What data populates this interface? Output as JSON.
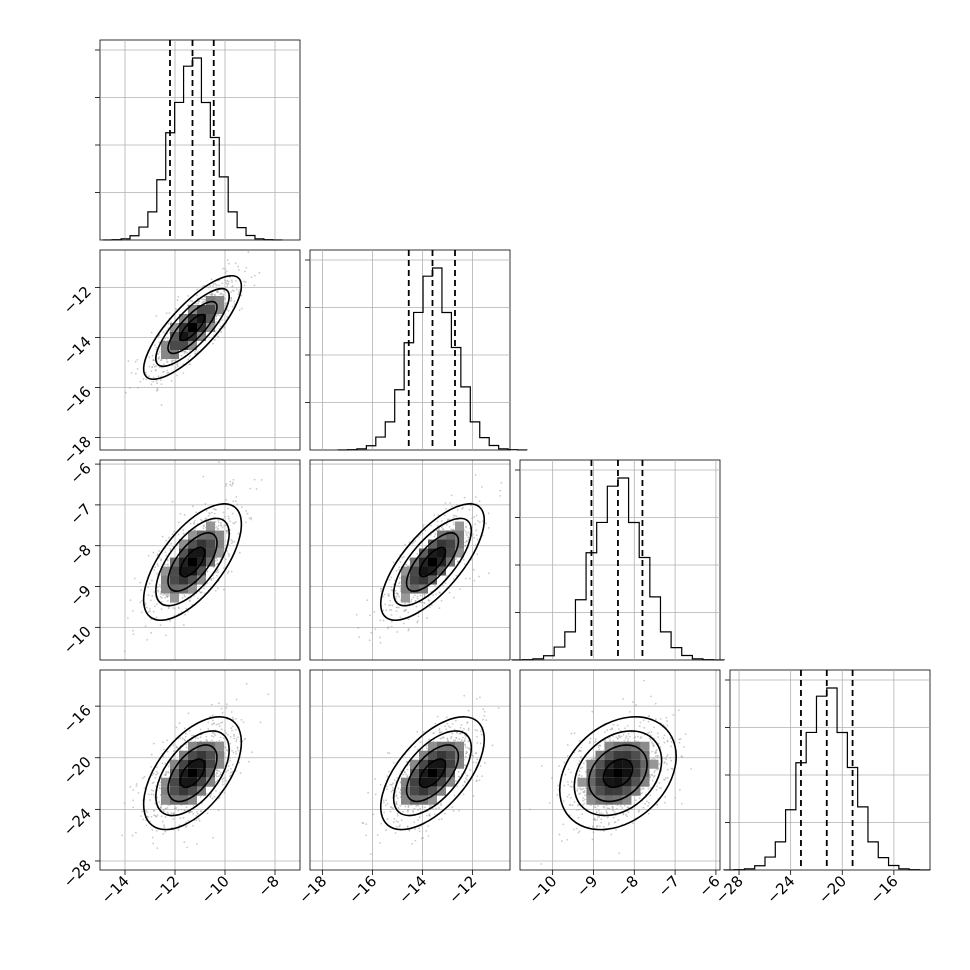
{
  "chart_data": {
    "type": "corner",
    "title": "",
    "grid": true,
    "parameters": [
      {
        "range": [
          -15,
          -7
        ],
        "ticks": [
          -14,
          -12,
          -10,
          -8
        ],
        "tick_labels": [
          "−14",
          "−12",
          "−10",
          "−8"
        ],
        "mean": -11.3,
        "sd": 0.85,
        "quantiles": [
          -12.2,
          -11.3,
          -10.45
        ]
      },
      {
        "range": [
          -18.5,
          -10.5
        ],
        "ticks": [
          -18,
          -16,
          -14,
          -12
        ],
        "tick_labels": [
          "−18",
          "−16",
          "−14",
          "−12"
        ],
        "mean": -13.6,
        "sd": 0.9,
        "quantiles": [
          -14.55,
          -13.6,
          -12.7
        ]
      },
      {
        "range": [
          -10.8,
          -5.9
        ],
        "ticks": [
          -10,
          -9,
          -8,
          -7,
          -6
        ],
        "tick_labels": [
          "−10",
          "−9",
          "−8",
          "−7",
          "−6"
        ],
        "mean": -8.4,
        "sd": 0.62,
        "quantiles": [
          -9.05,
          -8.4,
          -7.8
        ]
      },
      {
        "range": [
          -28.7,
          -13.2
        ],
        "ticks": [
          -28,
          -24,
          -20,
          -16
        ],
        "tick_labels": [
          "−28",
          "−24",
          "−20",
          "−16"
        ],
        "mean": -21.2,
        "sd": 1.9,
        "quantiles": [
          -23.2,
          -21.2,
          -19.2
        ]
      }
    ],
    "correlations": [
      [
        1.0,
        0.8,
        0.65,
        0.55
      ],
      [
        0.8,
        1.0,
        0.72,
        0.6
      ],
      [
        0.65,
        0.72,
        1.0,
        0.3
      ],
      [
        0.55,
        0.6,
        0.3,
        1.0
      ]
    ],
    "histogram_bins": 20,
    "contour_levels_sigma": [
      0.5,
      1.0,
      1.5,
      2.0
    ],
    "colors": {
      "line": "#000000",
      "points": "#9e9e9e",
      "grid": "#b0b0b0"
    }
  }
}
